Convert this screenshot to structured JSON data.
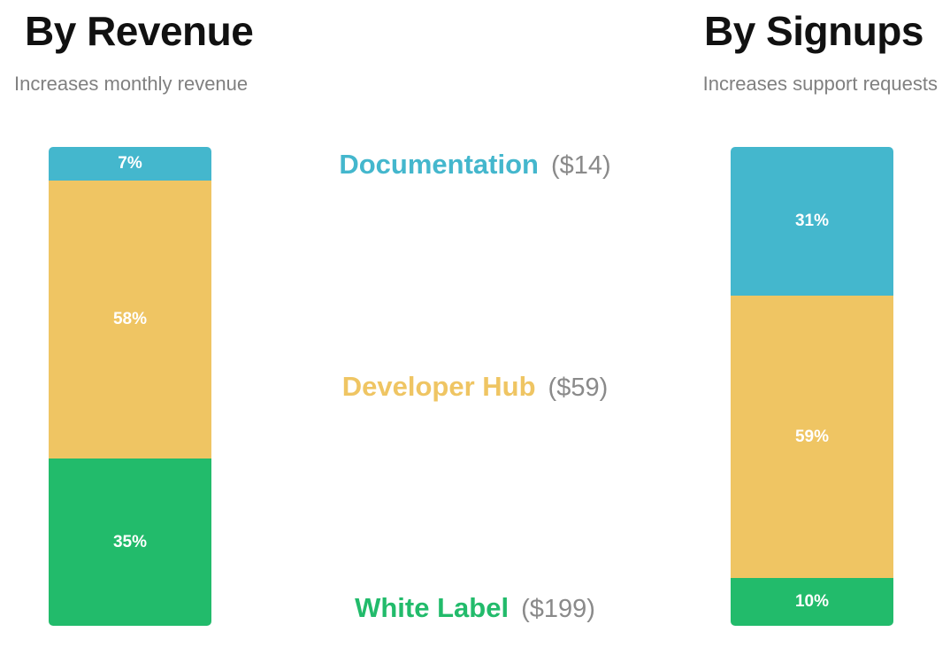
{
  "panels": {
    "left": {
      "title": "By Revenue",
      "subtitle": "Increases monthly revenue"
    },
    "right": {
      "title": "By Signups",
      "subtitle": "Increases support requests"
    }
  },
  "legend": [
    {
      "name": "Documentation",
      "price": "($14)",
      "color": "#44b7cd"
    },
    {
      "name": "Developer Hub",
      "price": "($59)",
      "color": "#efc563"
    },
    {
      "name": "White Label",
      "price": "($199)",
      "color": "#22bb6b"
    }
  ],
  "chart_data": [
    {
      "type": "bar",
      "stacked": true,
      "title": "By Revenue",
      "subtitle": "Increases monthly revenue",
      "unit": "%",
      "series": [
        {
          "name": "Documentation",
          "value": 7,
          "label": "7%",
          "color": "#44b7cd"
        },
        {
          "name": "Developer Hub",
          "value": 58,
          "label": "58%",
          "color": "#efc563"
        },
        {
          "name": "White Label",
          "value": 35,
          "label": "35%",
          "color": "#22bb6b"
        }
      ]
    },
    {
      "type": "bar",
      "stacked": true,
      "title": "By Signups",
      "subtitle": "Increases support requests",
      "unit": "%",
      "series": [
        {
          "name": "Documentation",
          "value": 31,
          "label": "31%",
          "color": "#44b7cd"
        },
        {
          "name": "Developer Hub",
          "value": 59,
          "label": "59%",
          "color": "#efc563"
        },
        {
          "name": "White Label",
          "value": 10,
          "label": "10%",
          "color": "#22bb6b"
        }
      ]
    }
  ]
}
